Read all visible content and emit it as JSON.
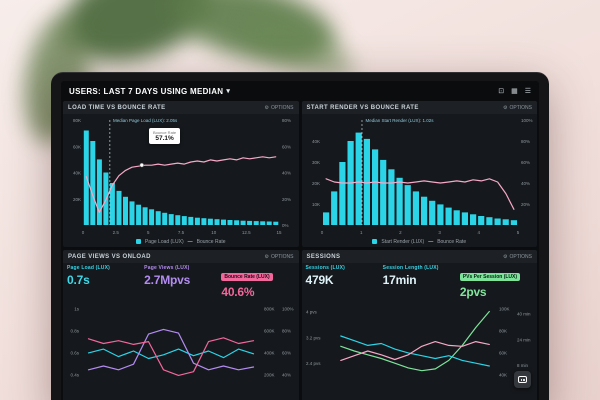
{
  "labels": {
    "options": "OPTIONS"
  },
  "topbar": {
    "title": "USERS: LAST 7 DAYS USING MEDIAN",
    "chevron": "▾",
    "icons": [
      {
        "name": "display-icon",
        "glyph": "⊡"
      },
      {
        "name": "apps-icon",
        "glyph": "▦"
      },
      {
        "name": "menu-icon",
        "glyph": "☰"
      }
    ]
  },
  "panels": {
    "load_time": {
      "title": "LOAD TIME VS BOUNCE RATE",
      "median_label": "Median Page Load (LUX): 2.05s",
      "tooltip_label": "Bounce Rate",
      "tooltip_value": "57.1%",
      "legend_bar": "Page Load (LUX)",
      "legend_line": "Bounce Rate"
    },
    "start_render": {
      "title": "START RENDER VS BOUNCE RATE",
      "median_label": "Median Start Render (LUX): 1.02s",
      "legend_bar": "Start Render (LUX)",
      "legend_line": "Bounce Rate"
    },
    "page_views": {
      "title": "PAGE VIEWS VS ONLOAD",
      "stats": [
        {
          "label": "Page Load (LUX)",
          "value": "0.7s",
          "color": "#35d6e8"
        },
        {
          "label": "Page Views (LUX)",
          "value": "2.7Mpvs",
          "color": "#b48cf2"
        },
        {
          "label": "Bounce Rate (LUX)",
          "value": "40.6%",
          "color": "#f2679c"
        }
      ]
    },
    "sessions": {
      "title": "SESSIONS",
      "stats": [
        {
          "label": "Sessions (LUX)",
          "value": "479K",
          "color": "#35d6e8"
        },
        {
          "label": "Session Length (LUX)",
          "value": "17min",
          "color": "#35d6e8"
        },
        {
          "label": "PVs Per Session (LUX)",
          "value": "2pvs",
          "color": "#7de39b"
        }
      ]
    }
  },
  "chart_data": [
    {
      "id": "load-time",
      "type": "bar",
      "title": "LOAD TIME VS BOUNCE RATE",
      "xlabel": "Page Load (s)",
      "ylabel": "Users",
      "ymax": 80,
      "bar_color": "#2bd4e6",
      "m": {
        "l": 18,
        "r": 18,
        "t": 5,
        "b": 11
      },
      "bars": [
        72,
        64,
        50,
        40,
        32,
        26,
        21.5,
        18,
        15.5,
        13.5,
        12,
        10.5,
        9.3,
        8.3,
        7.5,
        6.8,
        6.2,
        5.6,
        5.2,
        4.8,
        4.4,
        4.1,
        3.8,
        3.6,
        3.3,
        3.1,
        3,
        2.8,
        2.7,
        2.5
      ],
      "series": [
        {
          "name": "Bounce Rate",
          "color": "#f6a8c6",
          "points": [
            46,
            28,
            12,
            24,
            38,
            47,
            52,
            55,
            56,
            57,
            57,
            58,
            57,
            58,
            59,
            58,
            60,
            61,
            60,
            62,
            61,
            62,
            63,
            62,
            64,
            63,
            64,
            65,
            64,
            65
          ]
        }
      ],
      "median_frac": 0.137,
      "marker": {
        "frac": 0.3,
        "pct": 57
      },
      "ticks": [
        {
          "labels": [
            "80K",
            "60K",
            "40K",
            "20K"
          ],
          "side": "left",
          "start": 0,
          "span": 0.75
        },
        {
          "labels": [
            "80%",
            "60%",
            "40%",
            "20%",
            "0%"
          ],
          "side": "right",
          "start": 0,
          "span": 1
        }
      ],
      "xticks": [
        "0",
        "2.5",
        "5",
        "7.5",
        "10",
        "12.5",
        "15"
      ]
    },
    {
      "id": "start-render",
      "type": "bar",
      "title": "START RENDER VS BOUNCE RATE",
      "xlabel": "Start Render (s)",
      "ylabel": "Users",
      "ymax": 50,
      "bar_color": "#2bd4e6",
      "m": {
        "l": 18,
        "r": 18,
        "t": 5,
        "b": 11
      },
      "bars": [
        6,
        16,
        30,
        40,
        44,
        41,
        36,
        31,
        26.5,
        22.5,
        19,
        16,
        13.5,
        11.5,
        9.8,
        8.3,
        7,
        6,
        5.1,
        4.3,
        3.7,
        3.1,
        2.7,
        2.3
      ],
      "series": [
        {
          "name": "Bounce Rate",
          "color": "#f6a8c6",
          "points": [
            44,
            41,
            40,
            40,
            41,
            40,
            41,
            40,
            40,
            41,
            40,
            41,
            42,
            41,
            40,
            41,
            42,
            41,
            43,
            42,
            44,
            41,
            30,
            15
          ]
        }
      ],
      "median_frac": 0.204,
      "ticks": [
        {
          "labels": [
            "40K",
            "30K",
            "20K",
            "10K"
          ],
          "side": "left",
          "start": 0.2,
          "span": 0.6
        },
        {
          "labels": [
            "100%",
            "80%",
            "60%",
            "40%",
            "20%"
          ],
          "side": "right",
          "start": 0,
          "span": 0.8
        }
      ],
      "xticks": [
        "0",
        "1",
        "2",
        "3",
        "4",
        "5"
      ]
    },
    {
      "id": "pageviews",
      "type": "line",
      "title": "PAGE VIEWS VS ONLOAD",
      "m": {
        "l": 16,
        "r": 36,
        "t": 4,
        "b": 4
      },
      "series": [
        {
          "name": "Page Load (LUX)",
          "color": "#2bd4e6",
          "points": [
            48,
            52,
            44,
            50,
            42,
            46,
            52,
            45,
            50,
            43,
            52,
            47
          ]
        },
        {
          "name": "Page Views (LUX)",
          "color": "#b48cf2",
          "points": [
            30,
            34,
            30,
            36,
            68,
            73,
            69,
            37,
            30,
            34,
            30,
            33
          ]
        },
        {
          "name": "Bounce Rate (LUX)",
          "color": "#f2679c",
          "points": [
            63,
            58,
            61,
            57,
            60,
            30,
            24,
            28,
            60,
            64,
            58,
            61
          ]
        }
      ],
      "ticks": [
        {
          "labels": [
            "1s",
            "0.8s",
            "0.6s",
            "0.4s"
          ],
          "side": "left",
          "start": 0.05,
          "span": 0.7
        },
        {
          "labels": [
            "800K",
            "600K",
            "400K",
            "200K"
          ],
          "side": "right",
          "start": 0.05,
          "span": 0.7
        },
        {
          "labels": [
            "100%",
            "80%",
            "60%",
            "40%"
          ],
          "side": "right2",
          "start": 0.05,
          "span": 0.7
        }
      ]
    },
    {
      "id": "sessions",
      "type": "line",
      "title": "SESSIONS",
      "m": {
        "l": 30,
        "r": 40,
        "t": 4,
        "b": 4
      },
      "series": [
        {
          "name": "PVs Per Session (LUX)",
          "color": "#7de39b",
          "points": [
            55,
            50,
            46,
            42,
            37,
            32,
            29,
            31,
            40,
            56,
            75,
            92
          ]
        },
        {
          "name": "Sessions (LUX)",
          "color": "#2bd4e6",
          "points": [
            66,
            61,
            56,
            58,
            52,
            48,
            45,
            42,
            45,
            40,
            37,
            34
          ]
        },
        {
          "name": "Session Length (LUX)",
          "color": "#f6a8c6",
          "points": [
            40,
            45,
            50,
            46,
            41,
            46,
            55,
            60,
            56,
            55,
            60,
            57
          ]
        }
      ],
      "ticks": [
        {
          "labels": [
            "4 pvs",
            "3.2 pvs",
            "2.4 pvs"
          ],
          "side": "edge",
          "start": 0.08,
          "span": 0.55
        },
        {
          "labels": [
            "100K",
            "80K",
            "60K",
            "40K"
          ],
          "side": "right",
          "start": 0.05,
          "span": 0.7
        },
        {
          "labels": [
            "40 min",
            "24 min",
            "8 min"
          ],
          "side": "right2",
          "start": 0.1,
          "span": 0.55
        }
      ]
    }
  ]
}
